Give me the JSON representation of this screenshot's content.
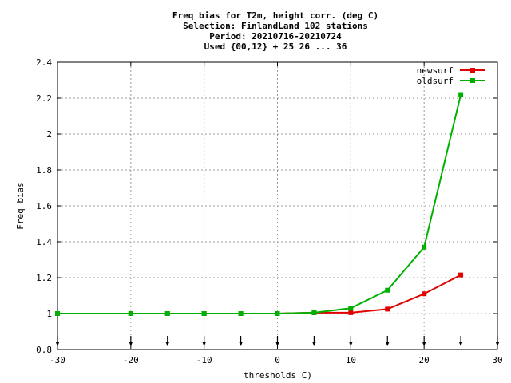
{
  "chart_data": {
    "type": "line",
    "title_lines": [
      "Freq bias  for T2m, height corr. (deg C)",
      "Selection: FinlandLand    102 stations",
      "Period: 20210716-20210724",
      "Used {00,12} + 25 26 ... 36"
    ],
    "xlabel": "thresholds C)",
    "ylabel": "Freq bias",
    "xlim": [
      -30,
      30
    ],
    "ylim": [
      0.8,
      2.4
    ],
    "xticks": [
      -30,
      -20,
      -10,
      0,
      10,
      20,
      30
    ],
    "yticks": [
      0.8,
      1,
      1.2,
      1.4,
      1.6,
      1.8,
      2,
      2.2,
      2.4
    ],
    "xtick_labels": [
      "-30",
      "-20",
      "-10",
      "0",
      "10",
      "20",
      "30"
    ],
    "ytick_labels": [
      "0.8",
      "1",
      "1.2",
      "1.4",
      "1.6",
      "1.8",
      "2",
      "2.2",
      "2.4"
    ],
    "grid": true,
    "legend_position": "top-right",
    "arrow_markers_x": [
      -30,
      -20,
      -15,
      -10,
      -5,
      0,
      5,
      10,
      15,
      20,
      25,
      30
    ],
    "series": [
      {
        "name": "newsurf",
        "color": "#e00000",
        "x": [
          -30,
          -20,
          -15,
          -10,
          -5,
          0,
          5,
          10,
          15,
          20,
          25
        ],
        "y": [
          1.0,
          1.0,
          1.0,
          1.0,
          1.0,
          1.0,
          1.005,
          1.005,
          1.025,
          1.11,
          1.215
        ]
      },
      {
        "name": "oldsurf",
        "color": "#00b000",
        "x": [
          -30,
          -20,
          -15,
          -10,
          -5,
          0,
          5,
          10,
          15,
          20,
          25
        ],
        "y": [
          1.0,
          1.0,
          1.0,
          1.0,
          1.0,
          1.0,
          1.005,
          1.03,
          1.13,
          1.37,
          2.22
        ]
      }
    ]
  }
}
